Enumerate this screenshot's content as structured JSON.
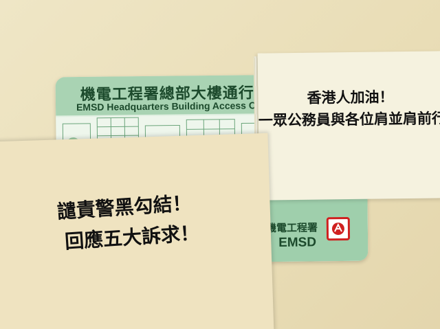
{
  "card": {
    "title_zh": "機電工程署總部大樓通行證",
    "title_en": "EMSD Headquarters Building Access Card",
    "org_zh": "機電工程署",
    "org_en": "EMSD"
  },
  "note_right": {
    "line1": "香港人加油！",
    "line2": "一眾公務員與各位肩並肩前行"
  },
  "note_left": {
    "line1": "譴責警黑勾結！",
    "line2": "回應五大訴求！"
  },
  "colors": {
    "card_green": "#a9d3b3",
    "card_text": "#1c4a2c",
    "logo_red": "#d02020",
    "note_bg": "#f5f2df",
    "note_left_bg": "#efe3c0"
  }
}
